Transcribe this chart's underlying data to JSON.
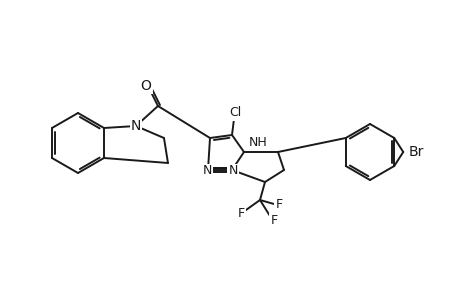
{
  "background_color": "#ffffff",
  "line_color": "#1a1a1a",
  "line_width": 1.4,
  "font_size": 9,
  "figsize": [
    4.6,
    3.0
  ],
  "dpi": 100,
  "atoms": {
    "Cl": "Cl",
    "O": "O",
    "N_thq": "N",
    "N1_pyr": "N",
    "N2_pyr": "N",
    "NH": "NH",
    "Br": "Br",
    "F1": "F",
    "F2": "F",
    "F3": "F"
  }
}
